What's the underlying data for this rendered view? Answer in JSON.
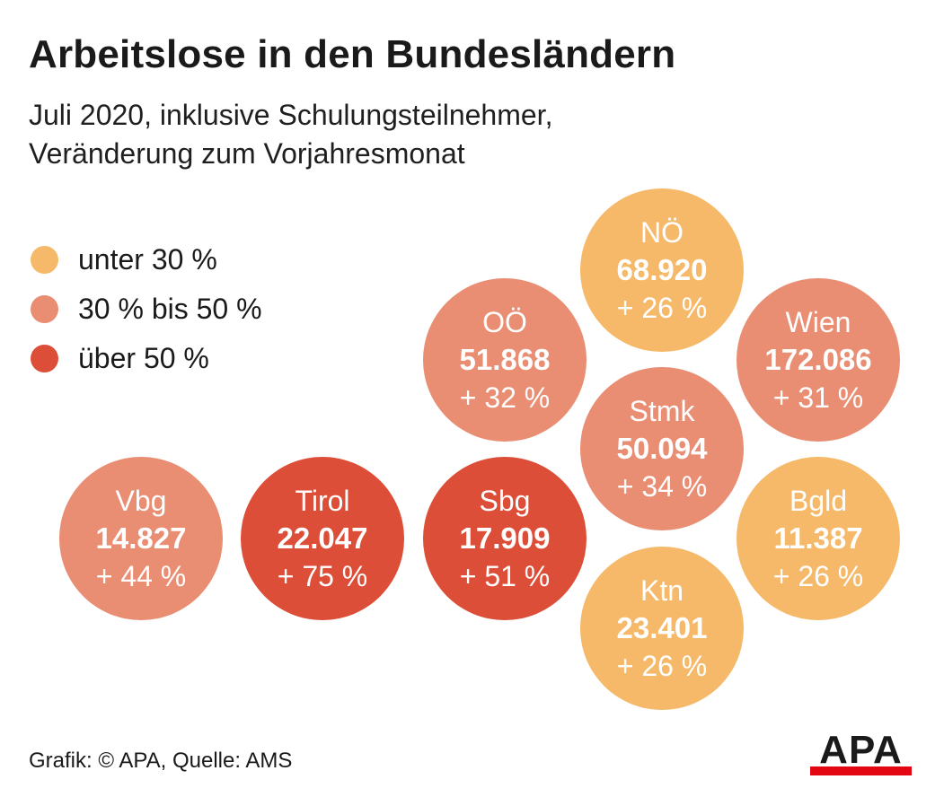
{
  "title": "Arbeitslose in den Bundesländern",
  "subtitle_lines": [
    "Juli 2020, inklusive Schulungsteilnehmer,",
    "Veränderung zum Vorjahresmonat"
  ],
  "legend": [
    {
      "label": "unter 30 %",
      "color": "#F5B969"
    },
    {
      "label": "30 % bis 50 %",
      "color": "#E98D73"
    },
    {
      "label": "über 50 %",
      "color": "#DC4E38"
    }
  ],
  "chart_data": {
    "type": "bubble-grid",
    "title": "Arbeitslose in den Bundesländern",
    "subtitle": "Juli 2020, inklusive Schulungsteilnehmer, Veränderung zum Vorjahresmonat",
    "regions": [
      {
        "name": "NÖ",
        "value": "68.920",
        "change": "+ 26 %",
        "change_pct": 26,
        "category": 0
      },
      {
        "name": "OÖ",
        "value": "51.868",
        "change": "+ 32 %",
        "change_pct": 32,
        "category": 1
      },
      {
        "name": "Wien",
        "value": "172.086",
        "change": "+ 31 %",
        "change_pct": 31,
        "category": 1
      },
      {
        "name": "Stmk",
        "value": "50.094",
        "change": "+ 34 %",
        "change_pct": 34,
        "category": 1
      },
      {
        "name": "Vbg",
        "value": "14.827",
        "change": "+ 44 %",
        "change_pct": 44,
        "category": 1
      },
      {
        "name": "Tirol",
        "value": "22.047",
        "change": "+ 75 %",
        "change_pct": 75,
        "category": 2
      },
      {
        "name": "Sbg",
        "value": "17.909",
        "change": "+ 51 %",
        "change_pct": 51,
        "category": 2
      },
      {
        "name": "Bgld",
        "value": "11.387",
        "change": "+ 26 %",
        "change_pct": 26,
        "category": 0
      },
      {
        "name": "Ktn",
        "value": "23.401",
        "change": "+ 26 %",
        "change_pct": 26,
        "category": 0
      }
    ]
  },
  "footer": "Grafik: © APA, Quelle: AMS",
  "logo_text": "APA",
  "logo_colors": {
    "text": "#1a1a1a",
    "bar": "#E30613"
  }
}
